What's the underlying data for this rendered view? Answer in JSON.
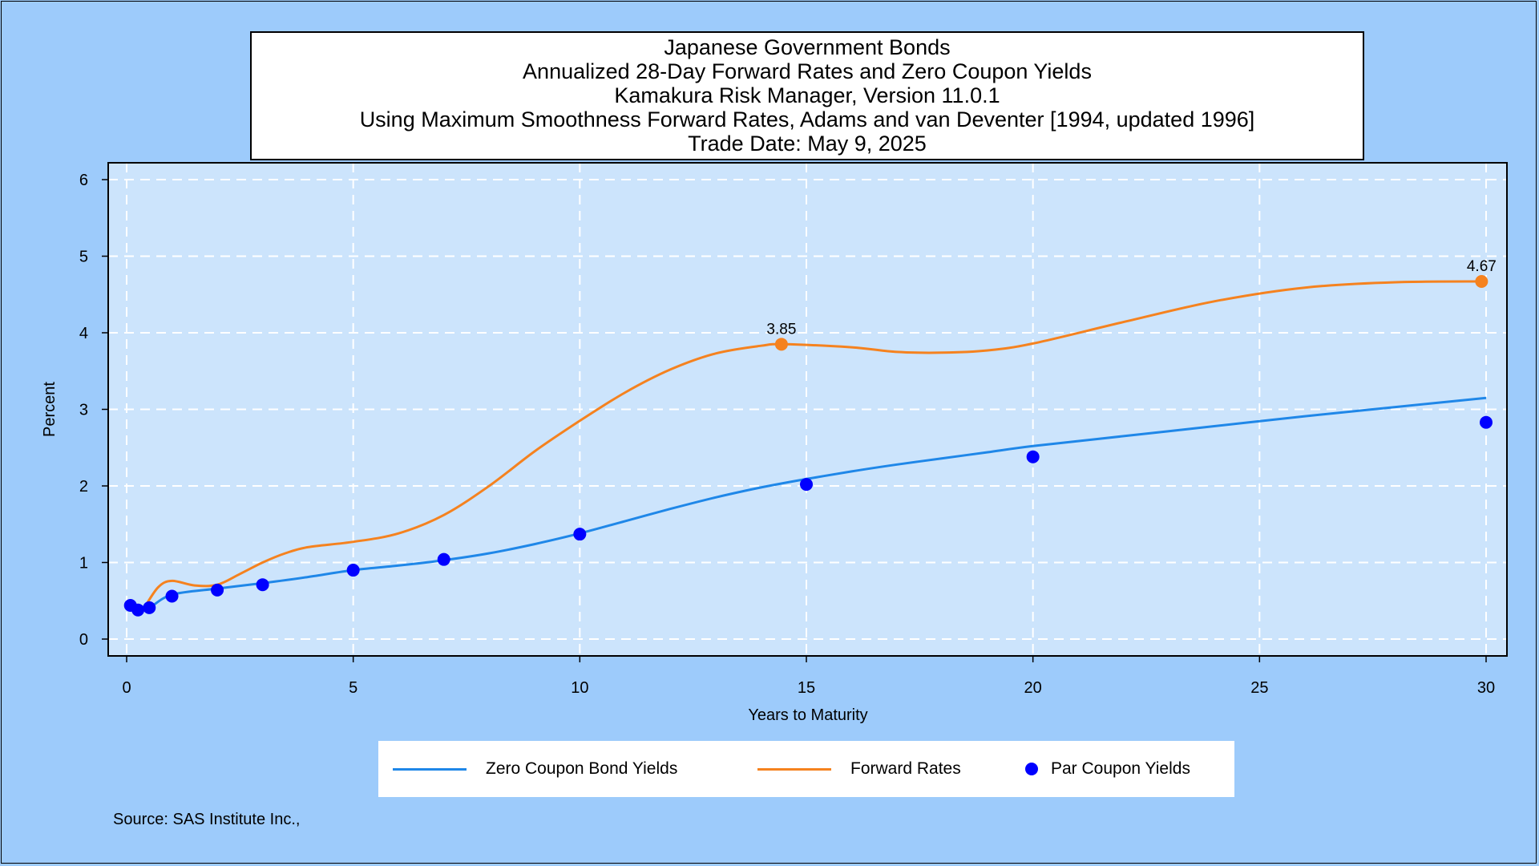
{
  "chart_data": {
    "type": "line",
    "title_lines": [
      "Japanese Government Bonds",
      "Annualized 28-Day Forward Rates and Zero Coupon Yields",
      "Kamakura Risk Manager, Version 11.0.1",
      "Using Maximum Smoothness Forward Rates, Adams and van Deventer [1994, updated 1996]",
      "Trade Date: May 9, 2025"
    ],
    "xlabel": "Years to Maturity",
    "ylabel": "Percent",
    "xlim": [
      0,
      30
    ],
    "ylim": [
      0,
      6
    ],
    "x_ticks": [
      0,
      5,
      10,
      15,
      20,
      25,
      30
    ],
    "y_ticks": [
      0,
      1,
      2,
      3,
      4,
      5,
      6
    ],
    "grid": true,
    "legend_position": "bottom",
    "source": "Source: SAS Institute Inc.,",
    "colors": {
      "zero_coupon": "#1f87e8",
      "forward": "#f5821f",
      "par": "#0000ff",
      "plot_bg": "#cce4fc",
      "page_bg": "#9dcbfb"
    },
    "series": [
      {
        "name": "Zero Coupon Bond Yields",
        "kind": "line",
        "x": [
          0.083,
          0.25,
          0.5,
          1,
          2,
          3,
          4,
          5,
          6,
          7,
          8,
          9,
          10,
          11,
          12,
          13,
          14,
          15,
          16,
          17,
          18,
          19,
          20,
          22,
          24,
          26,
          28,
          30
        ],
        "y": [
          0.43,
          0.38,
          0.41,
          0.58,
          0.66,
          0.73,
          0.81,
          0.9,
          0.96,
          1.03,
          1.12,
          1.24,
          1.38,
          1.54,
          1.7,
          1.85,
          1.98,
          2.09,
          2.19,
          2.28,
          2.36,
          2.44,
          2.52,
          2.65,
          2.78,
          2.91,
          3.03,
          3.15
        ]
      },
      {
        "name": "Forward Rates",
        "kind": "line",
        "x": [
          0.4,
          0.7,
          1,
          1.5,
          2,
          2.5,
          3,
          3.5,
          4,
          5,
          6,
          7,
          8,
          9,
          10,
          11,
          12,
          13,
          14,
          14.5,
          16,
          17,
          18,
          19,
          20,
          22,
          24,
          26,
          28,
          30
        ],
        "y": [
          0.42,
          0.68,
          0.76,
          0.7,
          0.71,
          0.85,
          1.0,
          1.12,
          1.2,
          1.27,
          1.38,
          1.62,
          2.0,
          2.45,
          2.85,
          3.22,
          3.52,
          3.73,
          3.83,
          3.85,
          3.81,
          3.75,
          3.74,
          3.77,
          3.86,
          4.14,
          4.41,
          4.59,
          4.66,
          4.67
        ]
      },
      {
        "name": "Par Coupon Yields",
        "kind": "scatter",
        "x": [
          0.083,
          0.25,
          0.5,
          1,
          2,
          3,
          5,
          7,
          10,
          15,
          20,
          30
        ],
        "y": [
          0.44,
          0.38,
          0.41,
          0.56,
          0.64,
          0.71,
          0.9,
          1.04,
          1.37,
          2.02,
          2.38,
          2.83
        ]
      }
    ],
    "annotations": [
      {
        "x": 14.45,
        "y": 3.85,
        "text": "3.85",
        "series": "Forward Rates"
      },
      {
        "x": 29.9,
        "y": 4.67,
        "text": "4.67",
        "series": "Forward Rates"
      }
    ]
  }
}
